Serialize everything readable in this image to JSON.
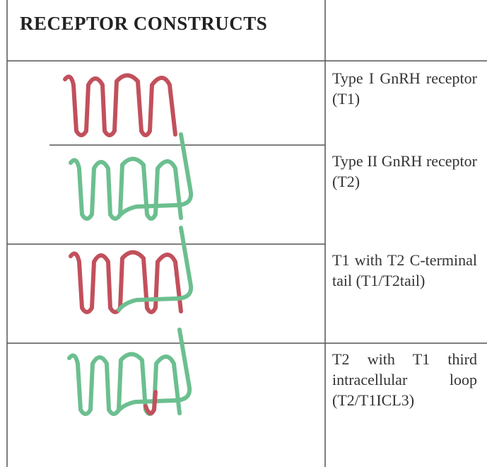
{
  "header": {
    "title": "RECEPTOR CONSTRUCTS"
  },
  "rows": [
    {
      "label": "Type I GnRH receptor (T1)"
    },
    {
      "label": "Type II GnRH receptor (T2)"
    },
    {
      "label": "T1 with T2 C-terminal tail (T1/T2tail)"
    },
    {
      "label": "T2 with T1 third intracellular loop (T2/T1ICL3)"
    }
  ]
}
